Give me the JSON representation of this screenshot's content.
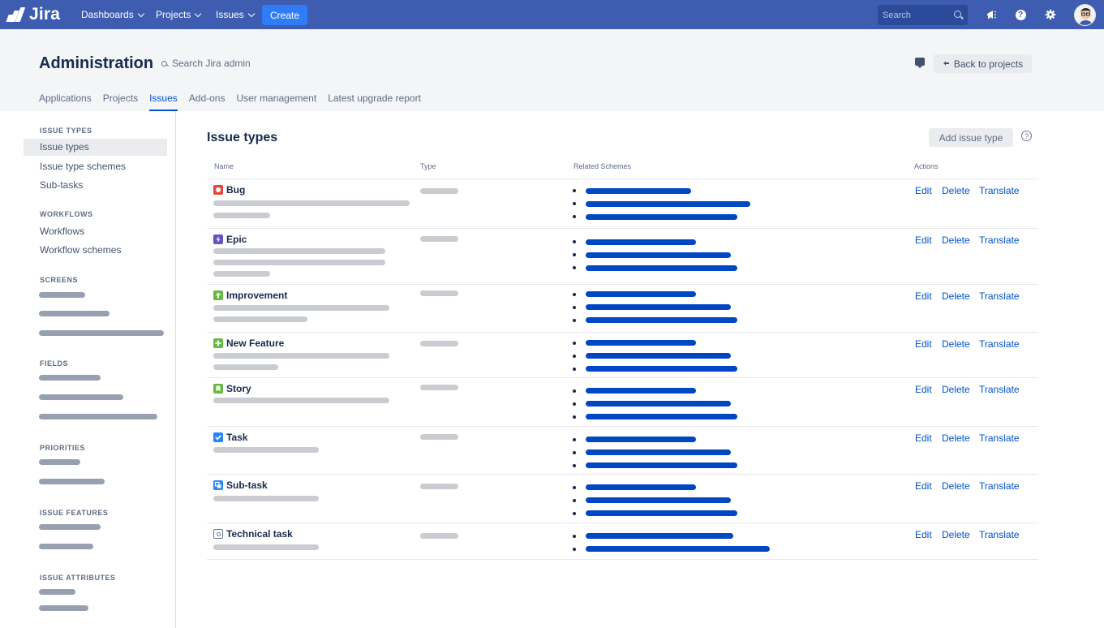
{
  "topnav": {
    "logo_text": "Jira",
    "items": [
      "Dashboards",
      "Projects",
      "Issues"
    ],
    "create_label": "Create",
    "search_placeholder": "Search"
  },
  "admin": {
    "title": "Administration",
    "search_placeholder": "Search Jira admin",
    "back_label": "Back to projects",
    "tabs": [
      "Applications",
      "Projects",
      "Issues",
      "Add-ons",
      "User management",
      "Latest upgrade report"
    ],
    "active_tab": "Issues"
  },
  "sidebar": {
    "sections": [
      {
        "heading": "ISSUE TYPES",
        "items": [
          "Issue types",
          "Issue type schemes",
          "Sub-tasks"
        ]
      },
      {
        "heading": "WORKFLOWS",
        "items": [
          "Workflows",
          "Workflow schemes"
        ]
      },
      {
        "heading": "SCREENS"
      },
      {
        "heading": "FIELDS"
      },
      {
        "heading": "PRIORITIES"
      },
      {
        "heading": "ISSUE FEATURES"
      },
      {
        "heading": "ISSUE ATTRIBUTES"
      }
    ]
  },
  "main": {
    "title": "Issue types",
    "add_label": "Add issue type",
    "columns": [
      "Name",
      "Type",
      "Related Schemes",
      "Actions"
    ],
    "actions": [
      "Edit",
      "Delete",
      "Translate"
    ],
    "rows": [
      {
        "name": "Bug",
        "icon": "bug-icon",
        "color": "#e5493a"
      },
      {
        "name": "Epic",
        "icon": "epic-icon",
        "color": "#6554c0"
      },
      {
        "name": "Improvement",
        "icon": "improvement-icon",
        "color": "#63ba3c"
      },
      {
        "name": "New Feature",
        "icon": "new-feature-icon",
        "color": "#63ba3c"
      },
      {
        "name": "Story",
        "icon": "story-icon",
        "color": "#63ba3c"
      },
      {
        "name": "Task",
        "icon": "task-icon",
        "color": "#2684ff"
      },
      {
        "name": "Sub-task",
        "icon": "subtask-icon",
        "color": "#2684ff"
      },
      {
        "name": "Technical task",
        "icon": "technical-task-icon",
        "color": "#6b778c"
      }
    ]
  }
}
